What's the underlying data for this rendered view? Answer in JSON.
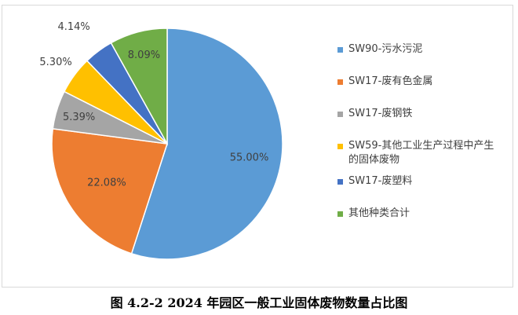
{
  "caption": "图 4.2-2    2024 年园区一般工业固体废物数量占比图",
  "chart_data": {
    "type": "pie",
    "title": "",
    "series": [
      {
        "name": "SW90-污水污泥",
        "value": 55.0,
        "label": "55.00%",
        "color": "#5B9BD5"
      },
      {
        "name": "SW17-废有色金属",
        "value": 22.08,
        "label": "22.08%",
        "color": "#ED7D31"
      },
      {
        "name": "SW17-废钢铁",
        "value": 5.39,
        "label": "5.39%",
        "color": "#A5A5A5"
      },
      {
        "name": "SW59-其他工业生产过程中产生的固体废物",
        "value": 5.3,
        "label": "5.30%",
        "color": "#FFC000"
      },
      {
        "name": "SW17-废塑料",
        "value": 4.14,
        "label": "4.14%",
        "color": "#4472C4"
      },
      {
        "name": "其他种类合计",
        "value": 8.09,
        "label": "8.09%",
        "color": "#70AD47"
      }
    ],
    "legend_position": "right"
  },
  "legend": [
    {
      "label": "SW90-污水污泥",
      "color": "#5B9BD5"
    },
    {
      "label": "SW17-废有色金属",
      "color": "#ED7D31"
    },
    {
      "label": "SW17-废钢铁",
      "color": "#A5A5A5"
    },
    {
      "label": "SW59-其他工业生产过程中产生的固体废物",
      "color": "#FFC000"
    },
    {
      "label": "SW17-废塑料",
      "color": "#4472C4"
    },
    {
      "label": "其他种类合计",
      "color": "#70AD47"
    }
  ]
}
